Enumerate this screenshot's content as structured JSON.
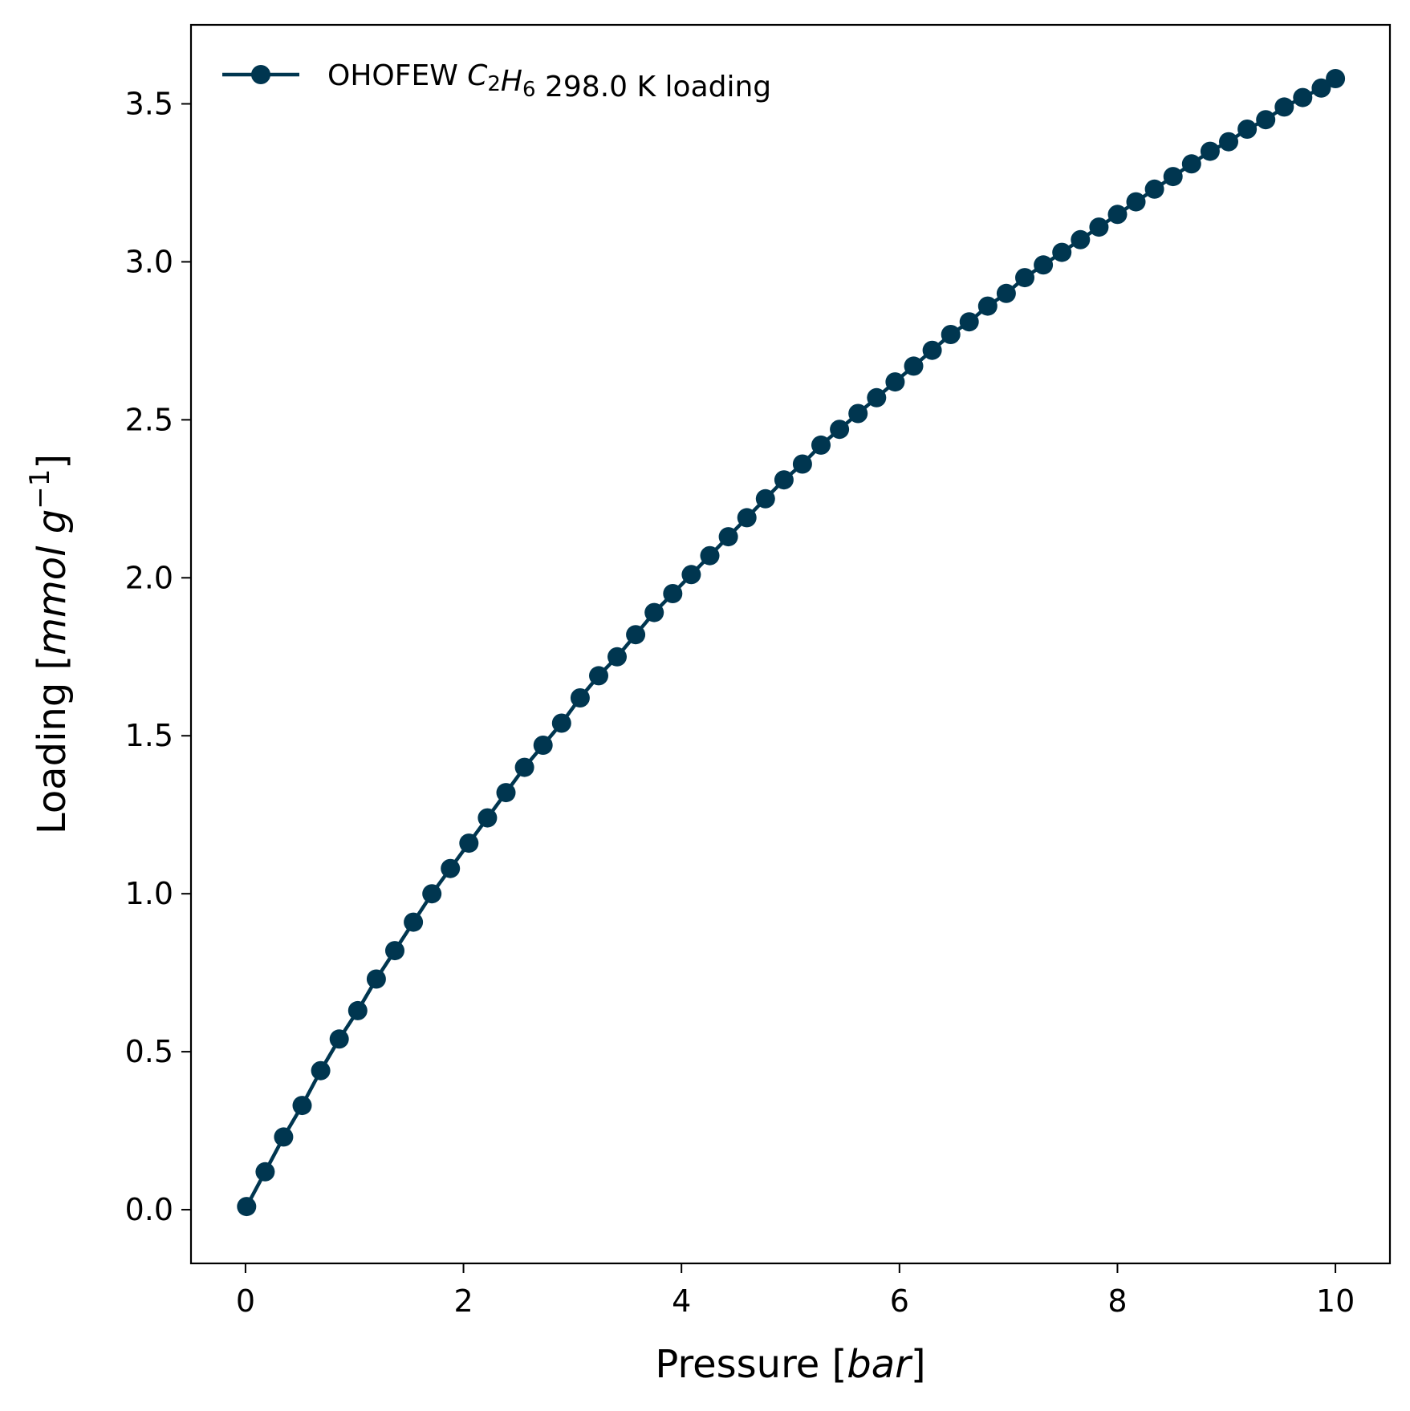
{
  "chart_data": {
    "type": "line",
    "xlabel": "Pressure [bar]",
    "ylabel": "Loading [mmol g⁻¹]",
    "xlim": [
      -0.5,
      10.5
    ],
    "ylim": [
      -0.17,
      3.75
    ],
    "x_ticks": [
      0,
      2,
      4,
      6,
      8,
      10
    ],
    "y_ticks": [
      0.0,
      0.5,
      1.0,
      1.5,
      2.0,
      2.5,
      3.0,
      3.5
    ],
    "x_tick_labels": [
      "0",
      "2",
      "4",
      "6",
      "8",
      "10"
    ],
    "y_tick_labels": [
      "0.0",
      "0.5",
      "1.0",
      "1.5",
      "2.0",
      "2.5",
      "3.0",
      "3.5"
    ],
    "grid": false,
    "legend": {
      "placement": "top-left"
    },
    "series": [
      {
        "name": "OHOFEW C₂H₆ 298.0 K loading",
        "color": "#003650",
        "marker": "circle",
        "x": [
          0.01,
          0.18,
          0.35,
          0.52,
          0.69,
          0.86,
          1.03,
          1.2,
          1.37,
          1.54,
          1.71,
          1.88,
          2.05,
          2.22,
          2.39,
          2.56,
          2.73,
          2.9,
          3.07,
          3.24,
          3.41,
          3.58,
          3.75,
          3.92,
          4.09,
          4.26,
          4.43,
          4.6,
          4.77,
          4.94,
          5.11,
          5.28,
          5.45,
          5.62,
          5.79,
          5.96,
          6.13,
          6.3,
          6.47,
          6.64,
          6.81,
          6.98,
          7.15,
          7.32,
          7.49,
          7.66,
          7.83,
          8.0,
          8.17,
          8.34,
          8.51,
          8.68,
          8.85,
          9.02,
          9.19,
          9.36,
          9.53,
          9.7,
          9.87,
          10.0
        ],
        "y": [
          0.01,
          0.12,
          0.23,
          0.33,
          0.44,
          0.54,
          0.63,
          0.73,
          0.82,
          0.91,
          1.0,
          1.08,
          1.16,
          1.24,
          1.32,
          1.4,
          1.47,
          1.54,
          1.62,
          1.69,
          1.75,
          1.82,
          1.89,
          1.95,
          2.01,
          2.07,
          2.13,
          2.19,
          2.25,
          2.31,
          2.36,
          2.42,
          2.47,
          2.52,
          2.57,
          2.62,
          2.67,
          2.72,
          2.77,
          2.81,
          2.86,
          2.9,
          2.95,
          2.99,
          3.03,
          3.07,
          3.11,
          3.15,
          3.19,
          3.23,
          3.27,
          3.31,
          3.35,
          3.38,
          3.42,
          3.45,
          3.49,
          3.52,
          3.55,
          3.58
        ]
      }
    ]
  }
}
